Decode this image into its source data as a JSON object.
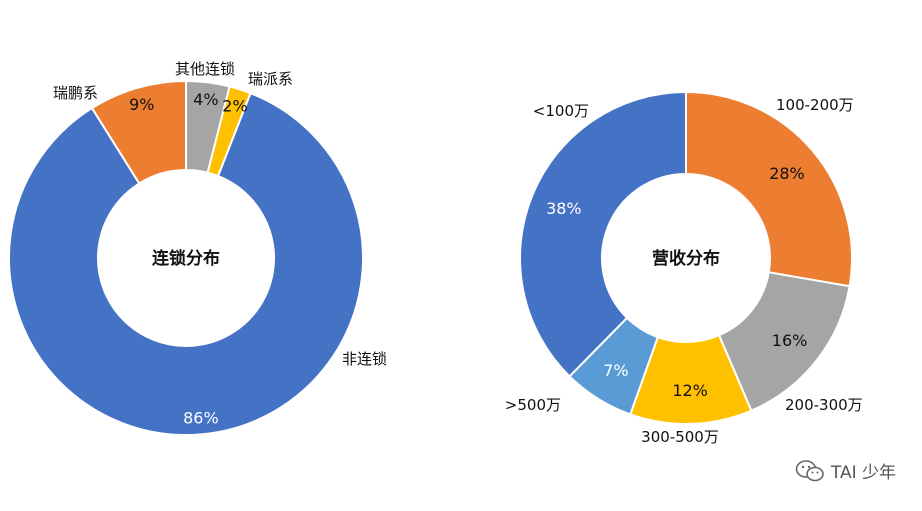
{
  "chart_data": [
    {
      "type": "pie",
      "title": "连锁分布",
      "categories": [
        "其他连锁",
        "瑞派系",
        "非连锁",
        "瑞鹏系"
      ],
      "values": [
        4,
        2,
        86,
        9
      ],
      "value_labels": [
        "4%",
        "2%",
        "86%",
        "9%"
      ],
      "colors": [
        "#a5a5a5",
        "#ffc000",
        "#4472c4",
        "#ed7d31"
      ]
    },
    {
      "type": "pie",
      "title": "营收分布",
      "categories": [
        "100-200万",
        "200-300万",
        "300-500万",
        ">500万",
        "<100万"
      ],
      "values": [
        28,
        16,
        12,
        7,
        38
      ],
      "value_labels": [
        "28%",
        "16%",
        "12%",
        "7%",
        "38%"
      ],
      "colors": [
        "#ed7d31",
        "#a5a5a5",
        "#ffc000",
        "#5b9bd5",
        "#4472c4"
      ]
    }
  ],
  "watermark": {
    "text": "TAI 少年",
    "icon": "wechat-icon"
  }
}
